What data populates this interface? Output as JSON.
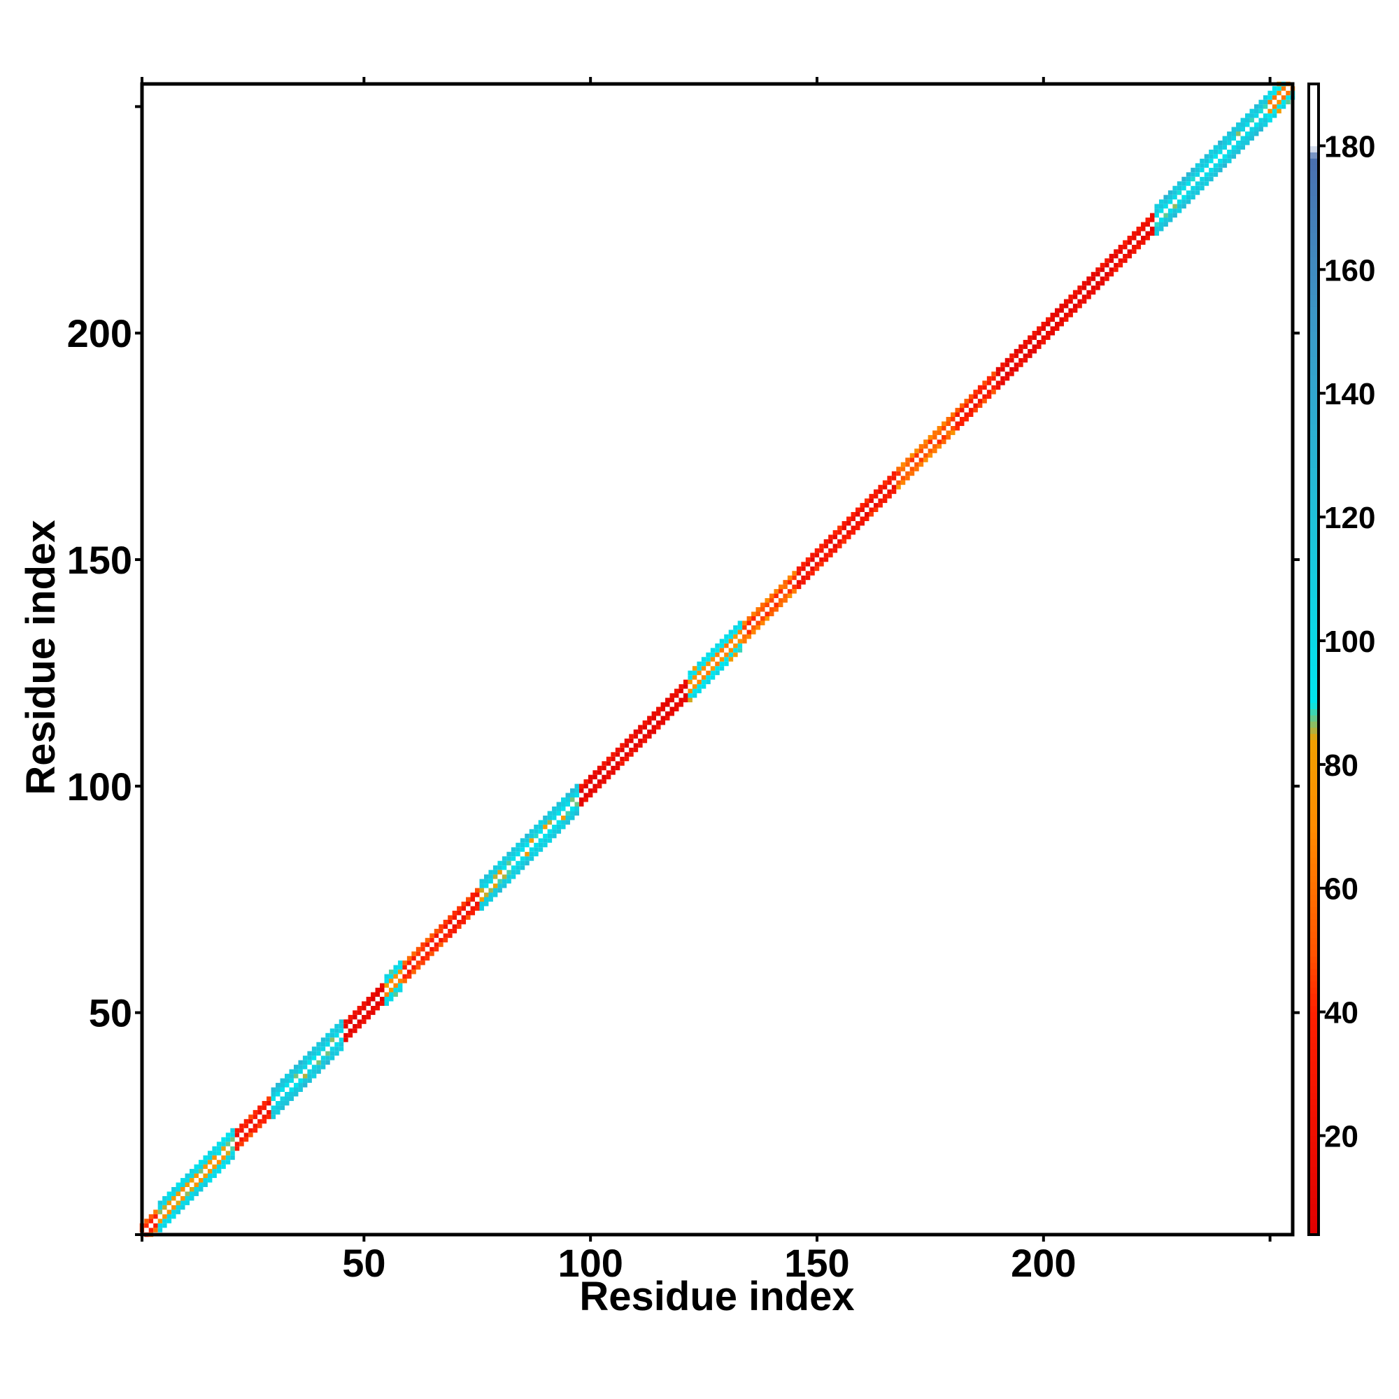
{
  "chart_data": {
    "type": "heatmap",
    "title": "",
    "xlabel": "Residue index",
    "ylabel": "Residue index",
    "xlim": [
      1,
      255
    ],
    "ylim": [
      1,
      255
    ],
    "x_ticks": [
      50,
      100,
      150,
      200
    ],
    "y_ticks": [
      50,
      100,
      150,
      200
    ],
    "grid": false,
    "colorbar": {
      "range": [
        4,
        190
      ],
      "ticks": [
        20,
        40,
        60,
        80,
        100,
        120,
        140,
        160,
        180
      ],
      "stops": [
        {
          "value": 4,
          "color": "#e00000"
        },
        {
          "value": 40,
          "color": "#ff2000"
        },
        {
          "value": 50,
          "color": "#ff5500"
        },
        {
          "value": 70,
          "color": "#ff8c00"
        },
        {
          "value": 84,
          "color": "#f0a000"
        },
        {
          "value": 90,
          "color": "#00e5ee"
        },
        {
          "value": 120,
          "color": "#20c0d8"
        },
        {
          "value": 150,
          "color": "#3a9ac8"
        },
        {
          "value": 178,
          "color": "#4a70b0"
        },
        {
          "value": 180,
          "color": "#ffffff"
        },
        {
          "value": 190,
          "color": "#ffffff"
        }
      ]
    },
    "segments": [
      {
        "start": 1,
        "end": 5,
        "value": 60
      },
      {
        "start": 5,
        "end": 22,
        "value": 100
      },
      {
        "start": 22,
        "end": 30,
        "value": 45
      },
      {
        "start": 30,
        "end": 46,
        "value": 115
      },
      {
        "start": 46,
        "end": 55,
        "value": 25
      },
      {
        "start": 55,
        "end": 59,
        "value": 95
      },
      {
        "start": 59,
        "end": 68,
        "value": 55
      },
      {
        "start": 68,
        "end": 76,
        "value": 45
      },
      {
        "start": 76,
        "end": 98,
        "value": 110
      },
      {
        "start": 98,
        "end": 122,
        "value": 25
      },
      {
        "start": 122,
        "end": 134,
        "value": 90
      },
      {
        "start": 134,
        "end": 146,
        "value": 70
      },
      {
        "start": 146,
        "end": 168,
        "value": 40
      },
      {
        "start": 168,
        "end": 181,
        "value": 70
      },
      {
        "start": 181,
        "end": 190,
        "value": 50
      },
      {
        "start": 190,
        "end": 216,
        "value": 25
      },
      {
        "start": 216,
        "end": 225,
        "value": 30
      },
      {
        "start": 225,
        "end": 250,
        "value": 115
      },
      {
        "start": 250,
        "end": 255,
        "value": 90
      }
    ]
  }
}
